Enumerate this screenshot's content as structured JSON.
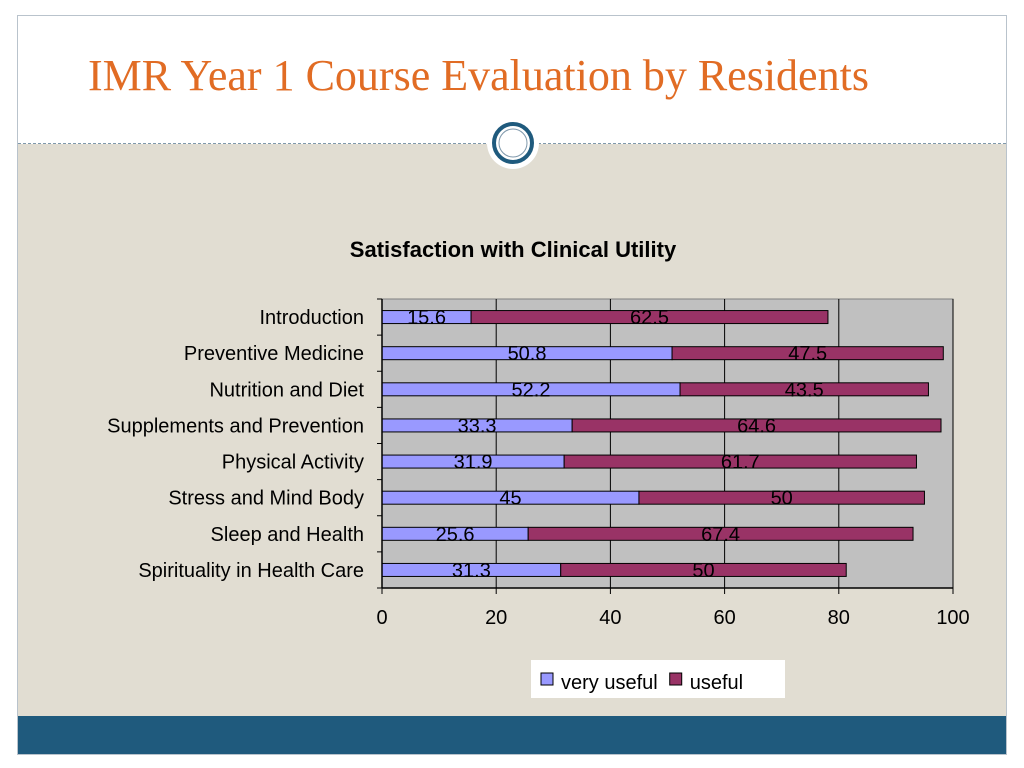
{
  "slide": {
    "title": "IMR Year 1 Course Evaluation by Residents"
  },
  "colors": {
    "title": "#e16c24",
    "background_band": "#e1ddd2",
    "footer_band": "#1f5a7d",
    "plot_area": "#c0c0c0",
    "very_useful": "#9999ff",
    "useful": "#993366"
  },
  "chart_data": {
    "type": "bar",
    "orientation": "horizontal",
    "stacked": true,
    "title": "Satisfaction with Clinical Utility",
    "categories": [
      "Introduction",
      "Preventive Medicine",
      "Nutrition and Diet",
      "Supplements and Prevention",
      "Physical Activity",
      "Stress and Mind Body",
      "Sleep and Health",
      "Spirituality in Health Care"
    ],
    "series": [
      {
        "name": "very useful",
        "color": "#9999ff",
        "values": [
          15.6,
          50.8,
          52.2,
          33.3,
          31.9,
          45,
          25.6,
          31.3
        ]
      },
      {
        "name": "useful",
        "color": "#993366",
        "values": [
          62.5,
          47.5,
          43.5,
          64.6,
          61.7,
          50,
          67.4,
          50
        ]
      }
    ],
    "xlim": [
      0,
      100
    ],
    "xticks": [
      0,
      20,
      40,
      60,
      80,
      100
    ],
    "grid": true,
    "legend": "bottom-center",
    "data_labels": true
  }
}
